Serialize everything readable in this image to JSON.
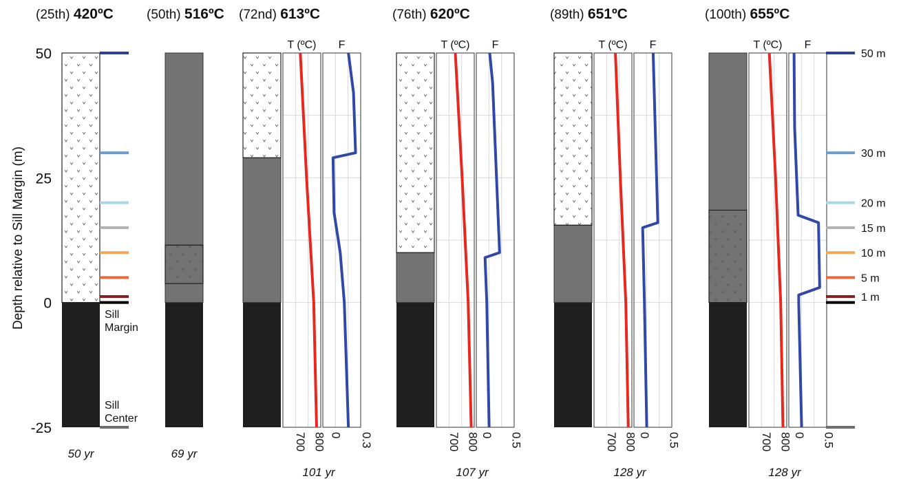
{
  "figure": {
    "ylabel": "Depth relative to Sill Margin (m)",
    "y_ticks": [
      "50",
      "25",
      "0",
      "-25"
    ],
    "ylim": [
      -25,
      50
    ],
    "marker_labels": [
      "50 m",
      "30 m",
      "20 m",
      "15 m",
      "10 m",
      "5 m",
      "1 m"
    ],
    "sill_margin_label": [
      "Sill",
      "Margin"
    ],
    "sill_center_label": [
      "Sill",
      "Center"
    ],
    "t_axis_label": "T (ºC)",
    "f_axis_label": "F"
  },
  "colors": {
    "sill": "#1f1f1f",
    "gray_host": "#737373",
    "temperature_curve": "#e8281e",
    "melt_fraction_curve": "#3048a6",
    "markers": {
      "50 m": "#2b3f9e",
      "30 m": "#6a9ecf",
      "20 m": "#a9d7ea",
      "15 m": "#b3b3b3",
      "10 m": "#f5a85a",
      "5 m": "#ec6a3a",
      "1 m": "#8a1f1f",
      "0 m": "#000000",
      "-25 m": "#6e6e6e"
    }
  },
  "chart_data": [
    {
      "type": "column",
      "percentile": "(25th)",
      "peak_temp": "420ºC",
      "time": "50 yr",
      "column": {
        "dark_top": 0,
        "gray_top": 0,
        "pattern_top": 50,
        "pattern_bottom": 0
      }
    },
    {
      "type": "column",
      "percentile": "(50th)",
      "peak_temp": "516ºC",
      "time": "69 yr",
      "column": {
        "dark_top": 0,
        "gray_top": 50,
        "pattern_top": 11.5,
        "pattern_bottom": 3.8
      }
    },
    {
      "type": "line",
      "percentile": "(72nd)",
      "peak_temp": "613ºC",
      "time": "101 yr",
      "column": {
        "dark_top": 0,
        "gray_top": 29,
        "pattern_top": 50,
        "pattern_bottom": 29
      },
      "t_ticks": [
        "700",
        "800"
      ],
      "t_range": [
        650,
        850
      ],
      "f_ticks": [
        "0",
        "0.3"
      ],
      "f_range": [
        -0.05,
        0.32
      ],
      "temperature": {
        "depth": [
          50,
          25,
          0,
          -25
        ],
        "values": [
          742,
          775,
          813,
          828
        ]
      },
      "melt_fraction": {
        "depth": [
          50,
          42,
          30,
          29,
          18,
          10,
          0,
          -25
        ],
        "values": [
          0.2,
          0.25,
          0.27,
          0.05,
          0.06,
          0.12,
          0.16,
          0.2
        ]
      }
    },
    {
      "type": "line",
      "percentile": "(76th)",
      "peak_temp": "620ºC",
      "time": "107 yr",
      "column": {
        "dark_top": 0,
        "gray_top": 10,
        "pattern_top": 50,
        "pattern_bottom": 10
      },
      "t_ticks": [
        "700",
        "800"
      ],
      "t_range": [
        650,
        850
      ],
      "f_ticks": [
        "0",
        "0.5"
      ],
      "f_range": [
        -0.05,
        0.6
      ],
      "temperature": {
        "depth": [
          50,
          25,
          0,
          -25
        ],
        "values": [
          750,
          786,
          818,
          834
        ]
      },
      "melt_fraction": {
        "depth": [
          50,
          44,
          10,
          9,
          0,
          -25
        ],
        "values": [
          0.18,
          0.23,
          0.35,
          0.1,
          0.13,
          0.17
        ]
      }
    },
    {
      "type": "line",
      "percentile": "(89th)",
      "peak_temp": "651ºC",
      "time": "128 yr",
      "column": {
        "dark_top": 0,
        "gray_top": 15.5,
        "pattern_top": 50,
        "pattern_bottom": 15.5
      },
      "t_ticks": [
        "700",
        "800"
      ],
      "t_range": [
        650,
        850
      ],
      "f_ticks": [
        "0",
        "0.5"
      ],
      "f_range": [
        -0.05,
        0.6
      ],
      "temperature": {
        "depth": [
          50,
          25,
          0,
          -25
        ],
        "values": [
          763,
          789,
          818,
          831
        ]
      },
      "melt_fraction": {
        "depth": [
          50,
          16,
          15,
          0,
          -25
        ],
        "values": [
          0.28,
          0.36,
          0.1,
          0.13,
          0.17
        ]
      }
    },
    {
      "type": "line",
      "percentile": "(100th)",
      "peak_temp": "655ºC",
      "time": "128 yr",
      "column": {
        "dark_top": 0,
        "gray_top": 50,
        "pattern_top": 18.5,
        "pattern_bottom": 0
      },
      "t_ticks": [
        "700",
        "800"
      ],
      "t_range": [
        650,
        850
      ],
      "f_ticks": [
        "0",
        "0.5"
      ],
      "f_range": [
        -0.05,
        0.6
      ],
      "temperature": {
        "depth": [
          50,
          25,
          0,
          -25
        ],
        "values": [
          758,
          791,
          818,
          830
        ]
      },
      "melt_fraction": {
        "depth": [
          50,
          35,
          17.5,
          16,
          3,
          1.5,
          0,
          -25
        ],
        "values": [
          0.04,
          0.05,
          0.11,
          0.46,
          0.48,
          0.12,
          0.12,
          0.17
        ]
      }
    }
  ]
}
